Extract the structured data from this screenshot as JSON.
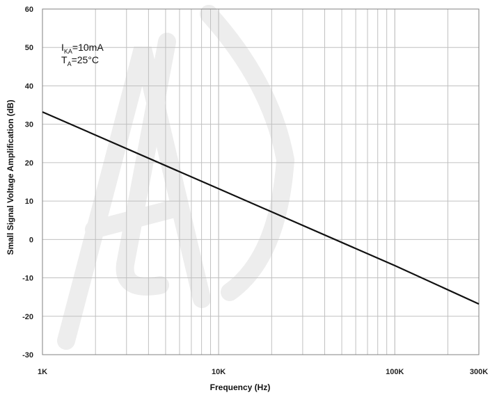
{
  "chart_data": {
    "type": "line",
    "xscale": "log",
    "xlim": [
      1000,
      300000
    ],
    "ylim": [
      -30,
      60
    ],
    "grid": true,
    "xlabel": "Frequency (Hz)",
    "ylabel": "Small Signal Voltage Amplification  (dB)",
    "x_ticks": [
      1000,
      10000,
      100000,
      300000
    ],
    "x_tick_labels": [
      "1K",
      "10K",
      "100K",
      "300K"
    ],
    "y_ticks": [
      60,
      50,
      40,
      30,
      20,
      10,
      0,
      -10,
      -20,
      -30
    ],
    "y_tick_labels": [
      "60",
      "50",
      "40",
      "30",
      "20",
      "10",
      "0",
      "-10",
      "-20",
      "-30"
    ],
    "annotation": {
      "line1": {
        "main": "I",
        "sub": "KA",
        "rest": "=10mA"
      },
      "line2": {
        "main": "T",
        "sub": "A",
        "rest": "=25°C"
      }
    },
    "series": [
      {
        "x": [
          1000,
          10000,
          100000,
          300000
        ],
        "values": [
          33.2,
          13.2,
          -6.8,
          -16.8
        ]
      }
    ],
    "watermark": "ALJ",
    "colors": {
      "line": "#111111",
      "grid": "#c0c0c0",
      "frame": "#808080",
      "watermark": "#ededed"
    }
  }
}
